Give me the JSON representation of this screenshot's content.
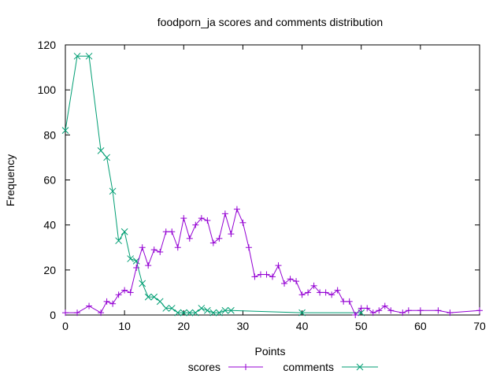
{
  "chart_data": {
    "type": "line",
    "title": "foodporn_ja scores and comments distribution",
    "xlabel": "Points",
    "ylabel": "Frequency",
    "xlim": [
      0,
      70
    ],
    "ylim": [
      0,
      120
    ],
    "xticks": [
      "0",
      "10",
      "20",
      "30",
      "40",
      "50",
      "60",
      "70"
    ],
    "yticks": [
      "0",
      "20",
      "40",
      "60",
      "80",
      "100",
      "120"
    ],
    "grid": false,
    "legend_position": "bottom",
    "series": [
      {
        "name": "scores",
        "color": "#9400d3",
        "marker": "plus",
        "points": [
          [
            0,
            1
          ],
          [
            2,
            1
          ],
          [
            4,
            4
          ],
          [
            6,
            1
          ],
          [
            7,
            6
          ],
          [
            8,
            5
          ],
          [
            9,
            9
          ],
          [
            10,
            11
          ],
          [
            11,
            10
          ],
          [
            12,
            21
          ],
          [
            13,
            30
          ],
          [
            14,
            22
          ],
          [
            15,
            29
          ],
          [
            16,
            28
          ],
          [
            17,
            37
          ],
          [
            18,
            37
          ],
          [
            19,
            30
          ],
          [
            20,
            43
          ],
          [
            21,
            34
          ],
          [
            22,
            40
          ],
          [
            23,
            43
          ],
          [
            24,
            42
          ],
          [
            25,
            32
          ],
          [
            26,
            34
          ],
          [
            27,
            45
          ],
          [
            28,
            36
          ],
          [
            29,
            47
          ],
          [
            30,
            41
          ],
          [
            31,
            30
          ],
          [
            32,
            17
          ],
          [
            33,
            18
          ],
          [
            34,
            18
          ],
          [
            35,
            17
          ],
          [
            36,
            22
          ],
          [
            37,
            14
          ],
          [
            38,
            16
          ],
          [
            39,
            15
          ],
          [
            40,
            9
          ],
          [
            41,
            10
          ],
          [
            42,
            13
          ],
          [
            43,
            10
          ],
          [
            44,
            10
          ],
          [
            45,
            9
          ],
          [
            46,
            11
          ],
          [
            47,
            6
          ],
          [
            48,
            6
          ],
          [
            49,
            0
          ],
          [
            50,
            3
          ],
          [
            51,
            3
          ],
          [
            52,
            1
          ],
          [
            53,
            2
          ],
          [
            54,
            4
          ],
          [
            55,
            2
          ],
          [
            57,
            1
          ],
          [
            58,
            2
          ],
          [
            60,
            2
          ],
          [
            63,
            2
          ],
          [
            65,
            1
          ],
          [
            70,
            2
          ]
        ]
      },
      {
        "name": "comments",
        "color": "#009e73",
        "marker": "cross",
        "points": [
          [
            0,
            82
          ],
          [
            2,
            115
          ],
          [
            4,
            115
          ],
          [
            6,
            73
          ],
          [
            7,
            70
          ],
          [
            8,
            55
          ],
          [
            9,
            33
          ],
          [
            10,
            37
          ],
          [
            11,
            25
          ],
          [
            12,
            24
          ],
          [
            13,
            14
          ],
          [
            14,
            8
          ],
          [
            15,
            8
          ],
          [
            16,
            6
          ],
          [
            17,
            3
          ],
          [
            18,
            3
          ],
          [
            19,
            1
          ],
          [
            20,
            1
          ],
          [
            21,
            1
          ],
          [
            22,
            1
          ],
          [
            23,
            3
          ],
          [
            24,
            2
          ],
          [
            25,
            1
          ],
          [
            26,
            1
          ],
          [
            27,
            2
          ],
          [
            28,
            2
          ],
          [
            40,
            1
          ],
          [
            50,
            1
          ]
        ]
      }
    ]
  }
}
